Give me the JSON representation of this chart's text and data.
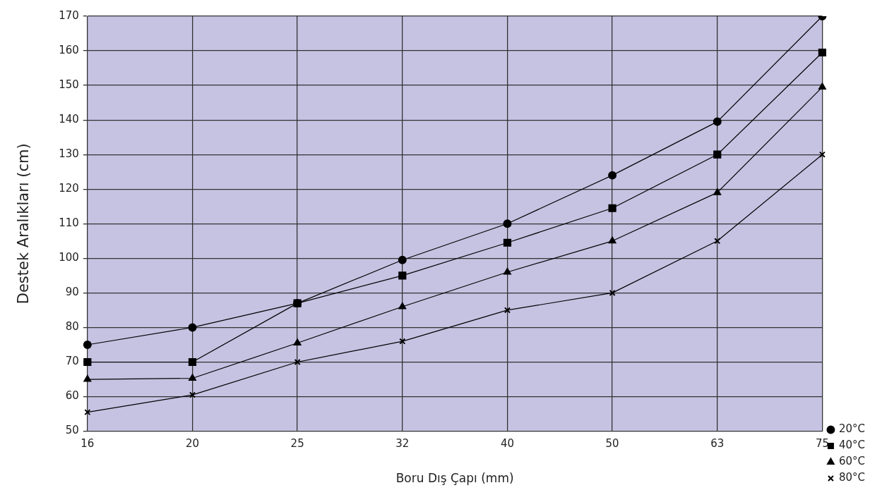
{
  "chart_data": {
    "type": "line",
    "xlabel": "Boru Dış Çapı (mm)",
    "ylabel": "Destek Aralıkları (cm)",
    "categories": [
      "16",
      "20",
      "25",
      "32",
      "40",
      "50",
      "63",
      "75"
    ],
    "series": [
      {
        "name": "20°C",
        "color": "#000000",
        "marker": "circle",
        "values": [
          75,
          80,
          87,
          99.5,
          110,
          124,
          139.5,
          170
        ]
      },
      {
        "name": "40°C",
        "color": "#000000",
        "marker": "square",
        "values": [
          70,
          70,
          87,
          95,
          104.5,
          114.5,
          130,
          159.5
        ]
      },
      {
        "name": "60°C",
        "color": "#000000",
        "marker": "triangle",
        "values": [
          65,
          65.3,
          75.5,
          86,
          96,
          105,
          119,
          149.5
        ]
      },
      {
        "name": "80°C",
        "color": "#000000",
        "marker": "cross",
        "values": [
          55.5,
          60.5,
          70,
          76,
          85,
          90,
          105,
          130
        ]
      }
    ],
    "ylim": [
      50,
      170
    ],
    "yticks": [
      50,
      60,
      70,
      80,
      90,
      100,
      110,
      120,
      130,
      140,
      150,
      160,
      170
    ],
    "grid": true,
    "legend": "bottom right",
    "line_style": "solid"
  }
}
